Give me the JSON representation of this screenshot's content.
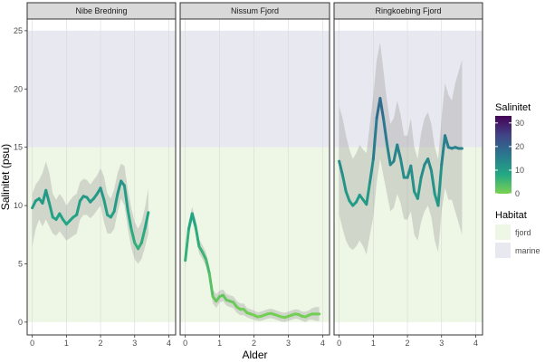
{
  "chart_data": {
    "type": "line",
    "xlabel": "Alder",
    "ylabel": "Salinitet (psu)",
    "xlim": [
      -0.15,
      4.2
    ],
    "ylim": [
      -1.1,
      26.0
    ],
    "x_ticks": [
      "0",
      "1",
      "2",
      "3",
      "4"
    ],
    "y_ticks": [
      "0",
      "5",
      "10",
      "15",
      "20",
      "25"
    ],
    "habitat_bands": [
      {
        "name": "fjord",
        "from": 0,
        "to": 15,
        "color": "#eef7e6"
      },
      {
        "name": "marine",
        "from": 15,
        "to": 25,
        "color": "#e8e8f0"
      }
    ],
    "panels": [
      {
        "title": "Nibe Bredning",
        "x": [
          0,
          0.1,
          0.2,
          0.3,
          0.4,
          0.5,
          0.6,
          0.7,
          0.8,
          0.9,
          1.0,
          1.1,
          1.2,
          1.3,
          1.4,
          1.5,
          1.6,
          1.7,
          1.8,
          1.9,
          2.0,
          2.1,
          2.2,
          2.3,
          2.4,
          2.5,
          2.6,
          2.7,
          2.8,
          2.9,
          3.0,
          3.1,
          3.2,
          3.3,
          3.4
        ],
        "y": [
          9.8,
          10.4,
          10.6,
          10.2,
          11.3,
          10.2,
          9.0,
          8.8,
          9.3,
          8.8,
          8.4,
          8.7,
          9.0,
          9.2,
          10.4,
          10.8,
          10.7,
          10.3,
          10.6,
          11.0,
          11.5,
          10.5,
          9.2,
          9.0,
          9.5,
          11.0,
          12.1,
          11.7,
          9.6,
          8.0,
          6.8,
          6.3,
          6.8,
          8.0,
          9.4
        ],
        "upper": [
          11.0,
          11.8,
          12.2,
          12.8,
          13.8,
          12.8,
          11.0,
          10.5,
          11.0,
          10.6,
          10.0,
          10.4,
          10.8,
          11.0,
          12.0,
          12.3,
          12.2,
          11.8,
          12.2,
          12.6,
          13.2,
          12.5,
          11.0,
          10.6,
          11.4,
          12.8,
          13.6,
          13.4,
          11.4,
          9.8,
          8.6,
          8.0,
          8.6,
          9.8,
          11.5
        ],
        "lower": [
          6.5,
          8.0,
          8.8,
          8.2,
          8.8,
          8.2,
          7.6,
          7.4,
          7.8,
          7.4,
          7.0,
          7.2,
          7.4,
          7.6,
          8.8,
          9.2,
          9.2,
          8.9,
          9.2,
          9.6,
          10.0,
          8.6,
          7.6,
          7.6,
          8.0,
          9.4,
          10.6,
          10.0,
          8.0,
          6.4,
          5.4,
          5.0,
          5.4,
          6.4,
          7.6
        ]
      },
      {
        "title": "Nissum Fjord",
        "x": [
          0,
          0.1,
          0.2,
          0.3,
          0.4,
          0.5,
          0.6,
          0.7,
          0.8,
          0.9,
          1.0,
          1.1,
          1.2,
          1.3,
          1.4,
          1.5,
          1.6,
          1.7,
          1.8,
          1.9,
          2.0,
          2.1,
          2.2,
          2.3,
          2.4,
          2.5,
          2.6,
          2.7,
          2.8,
          2.9,
          3.0,
          3.1,
          3.2,
          3.3,
          3.4,
          3.5,
          3.6,
          3.7,
          3.8,
          3.9
        ],
        "y": [
          5.3,
          8.0,
          9.3,
          8.2,
          6.5,
          6.0,
          5.4,
          4.2,
          2.2,
          1.8,
          2.2,
          2.3,
          1.9,
          1.8,
          1.7,
          1.3,
          1.1,
          1.1,
          0.8,
          0.7,
          0.6,
          0.45,
          0.5,
          0.6,
          0.7,
          0.75,
          0.65,
          0.55,
          0.45,
          0.4,
          0.5,
          0.6,
          0.7,
          0.65,
          0.5,
          0.45,
          0.6,
          0.7,
          0.7,
          0.7
        ],
        "upper": [
          5.9,
          8.6,
          9.9,
          8.8,
          7.1,
          6.6,
          6.0,
          4.8,
          2.8,
          2.4,
          2.7,
          2.8,
          2.4,
          2.3,
          2.2,
          1.8,
          1.6,
          1.6,
          1.2,
          1.1,
          1.0,
          0.85,
          0.9,
          1.0,
          1.1,
          1.15,
          1.05,
          0.95,
          0.85,
          0.8,
          0.9,
          1.0,
          1.1,
          1.05,
          0.9,
          0.9,
          1.0,
          1.2,
          1.3,
          1.3
        ],
        "lower": [
          4.7,
          7.4,
          8.7,
          7.6,
          5.9,
          5.4,
          4.8,
          3.6,
          1.6,
          1.2,
          1.7,
          1.8,
          1.4,
          1.3,
          1.2,
          0.8,
          0.6,
          0.6,
          0.4,
          0.3,
          0.2,
          0.1,
          0.1,
          0.2,
          0.3,
          0.35,
          0.25,
          0.15,
          0.05,
          0.0,
          0.1,
          0.2,
          0.3,
          0.25,
          0.1,
          0.0,
          0.2,
          0.2,
          0.1,
          0.1
        ]
      },
      {
        "title": "Ringkoebing Fjord",
        "x": [
          0,
          0.1,
          0.2,
          0.3,
          0.4,
          0.5,
          0.6,
          0.7,
          0.8,
          0.9,
          1.0,
          1.1,
          1.2,
          1.3,
          1.4,
          1.5,
          1.6,
          1.7,
          1.8,
          1.9,
          2.0,
          2.1,
          2.2,
          2.3,
          2.4,
          2.5,
          2.6,
          2.7,
          2.8,
          2.9,
          3.0,
          3.1,
          3.2,
          3.3,
          3.4,
          3.5,
          3.6
        ],
        "y": [
          13.8,
          12.6,
          11.2,
          10.4,
          10.0,
          10.3,
          10.9,
          10.5,
          10.1,
          12.0,
          14.0,
          17.5,
          19.2,
          17.4,
          15.3,
          13.5,
          13.8,
          15.2,
          14.0,
          12.4,
          12.4,
          13.4,
          11.2,
          10.6,
          12.4,
          13.5,
          14.0,
          13.0,
          11.0,
          10.0,
          13.5,
          16.0,
          15.0,
          14.9,
          15.0,
          14.9,
          14.9
        ],
        "upper": [
          18.5,
          17.5,
          16.0,
          14.8,
          14.0,
          14.5,
          15.2,
          14.8,
          14.5,
          17.0,
          19.5,
          22.5,
          24.0,
          21.5,
          19.0,
          17.0,
          17.5,
          19.0,
          17.8,
          16.0,
          16.0,
          17.5,
          15.0,
          14.0,
          16.2,
          17.5,
          18.0,
          17.0,
          15.0,
          14.0,
          17.5,
          20.5,
          19.5,
          19.0,
          20.5,
          21.5,
          22.5
        ],
        "lower": [
          9.2,
          8.0,
          7.0,
          6.4,
          6.2,
          6.5,
          7.0,
          6.5,
          5.8,
          7.5,
          9.0,
          12.0,
          14.0,
          12.5,
          11.0,
          9.5,
          9.8,
          11.0,
          10.2,
          8.8,
          8.8,
          9.5,
          7.5,
          7.0,
          8.6,
          9.5,
          10.0,
          9.0,
          7.0,
          6.0,
          9.5,
          11.5,
          10.5,
          10.5,
          9.5,
          8.5,
          7.5
        ]
      }
    ],
    "color_scale": {
      "title": "Salinitet",
      "min": 0,
      "max": 33,
      "ticks": [
        "0",
        "10",
        "20",
        "30"
      ],
      "stops": [
        "#7ad151",
        "#22a884",
        "#2a788e",
        "#414487",
        "#440154"
      ]
    },
    "legend": {
      "title": "Habitat",
      "items": [
        {
          "label": "fjord",
          "color": "#eef7e6"
        },
        {
          "label": "marine",
          "color": "#e8e8f0"
        }
      ]
    }
  }
}
